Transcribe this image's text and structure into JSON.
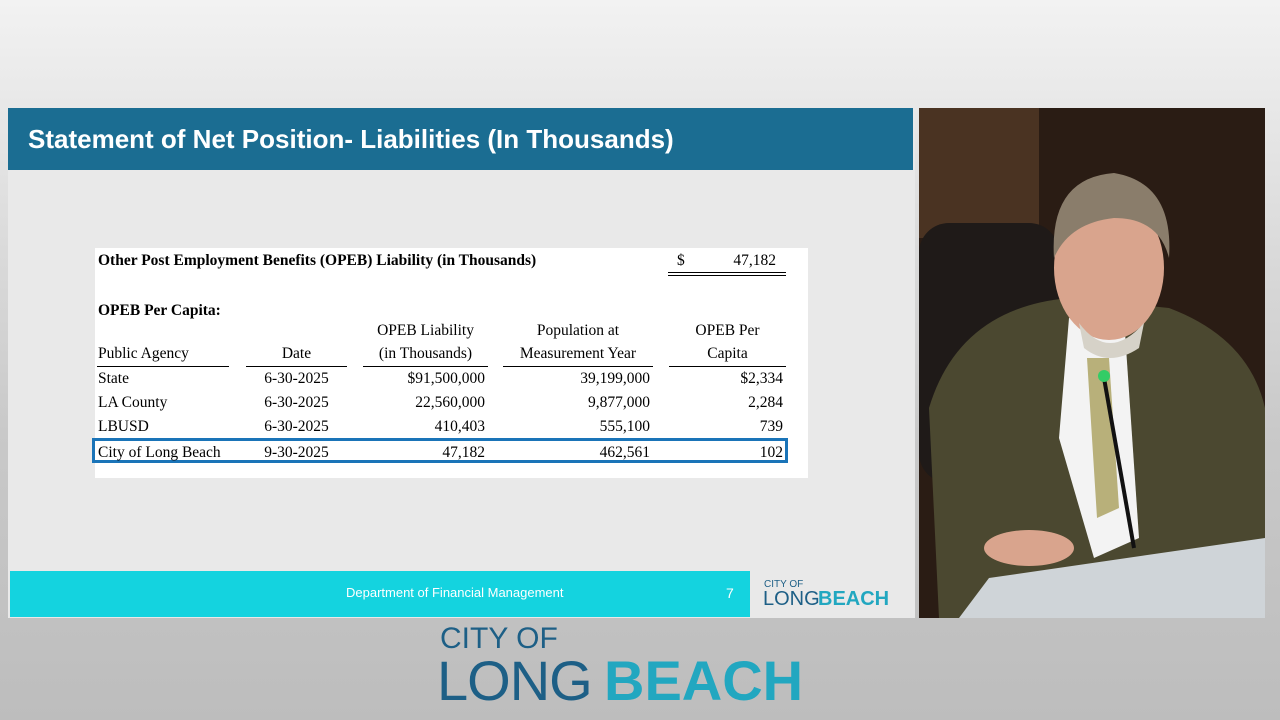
{
  "slide": {
    "title": "Statement of Net Position- Liabilities (In Thousands)",
    "summary": {
      "label": "Other Post Employment Benefits (OPEB) Liability (in Thousands)",
      "currency": "$",
      "amount": "47,182"
    },
    "section": "OPEB Per Capita:",
    "table": {
      "headers": [
        [
          "Public Agency"
        ],
        [
          "Date"
        ],
        [
          "OPEB Liability",
          "(in Thousands)"
        ],
        [
          "Population at",
          "Measurement Year"
        ],
        [
          "OPEB Per",
          "Capita"
        ]
      ],
      "rows": [
        [
          "State",
          "6-30-2025",
          "$91,500,000",
          "39,199,000",
          "$2,334"
        ],
        [
          "LA County",
          "6-30-2025",
          "22,560,000",
          "9,877,000",
          "2,284"
        ],
        [
          "LBUSD",
          "6-30-2025",
          "410,403",
          "555,100",
          "739"
        ],
        [
          "City of Long Beach",
          "9-30-2025",
          "47,182",
          "462,561",
          "102"
        ]
      ]
    },
    "footer": {
      "department": "Department of Financial Management",
      "page": "7",
      "logo_top": "CITY OF",
      "logo_long": "LONG",
      "logo_beach": "BEACH"
    }
  },
  "broadcast_logo": {
    "top": "CITY OF",
    "long": "LONG",
    "beach": "BEACH"
  }
}
